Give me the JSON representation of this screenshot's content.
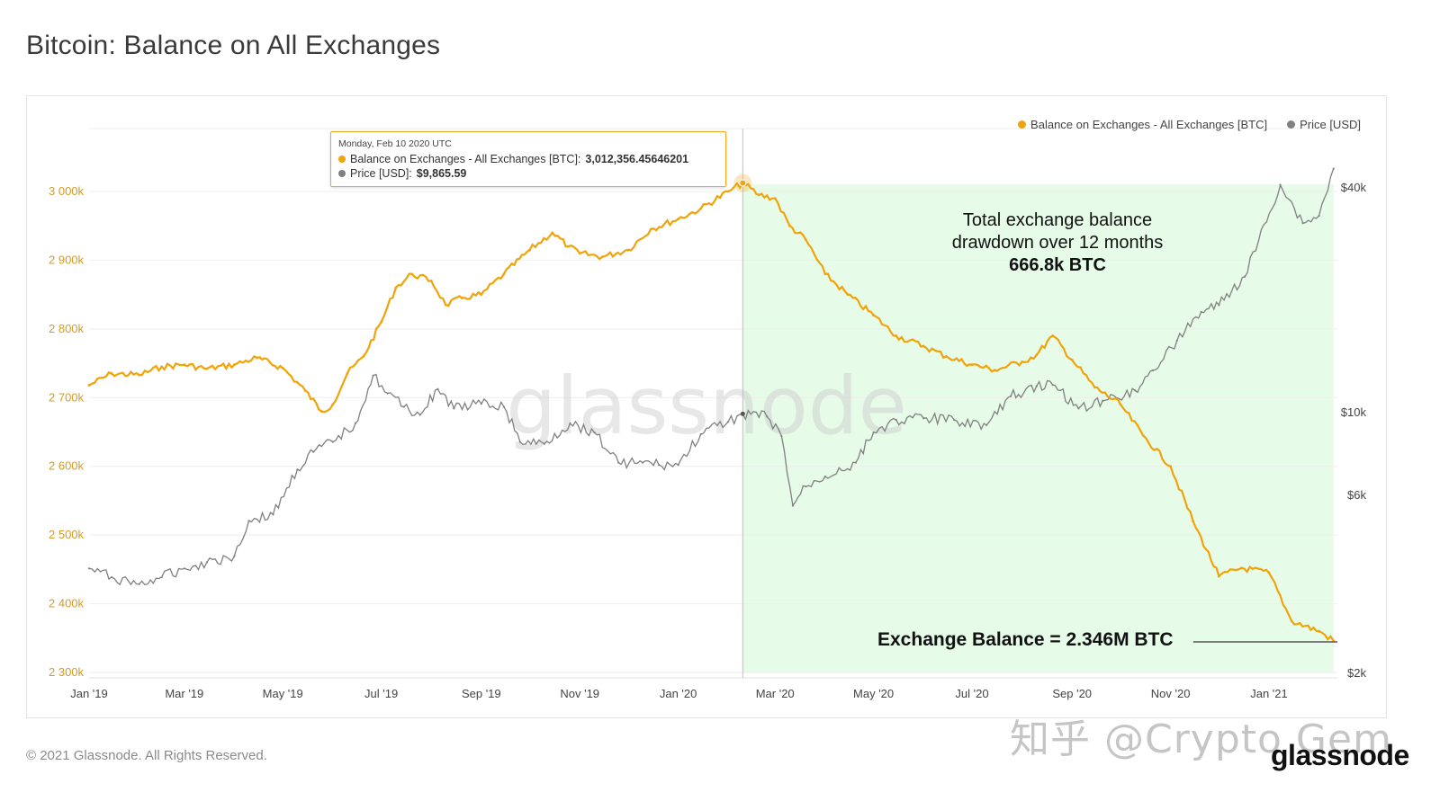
{
  "page": {
    "title": "Bitcoin: Balance on All Exchanges",
    "copyright": "© 2021 Glassnode. All Rights Reserved.",
    "brand": "glassnode",
    "watermark_center": "glassnode",
    "watermark_site": "知乎 @Crypto Gem"
  },
  "legend": {
    "series1": "Balance on Exchanges - All Exchanges [BTC]",
    "series2": "Price [USD]"
  },
  "tooltip": {
    "date": "Monday, Feb 10 2020 UTC",
    "row1_label": "Balance on Exchanges - All Exchanges [BTC]:",
    "row1_value": "3,012,356.45646201",
    "row2_label": "Price [USD]:",
    "row2_value": "$9,865.59"
  },
  "annotations": {
    "drawdown_line1": "Total exchange balance",
    "drawdown_line2": "drawdown over 12 months",
    "drawdown_value": "666.8k BTC",
    "balance_label": "Exchange Balance = 2.346M BTC"
  },
  "colors": {
    "balance": "#f0a30a",
    "price": "#808080",
    "highlight": "#e6fbe8",
    "axis_left": "#d49b28",
    "axis_right": "#444444",
    "x_axis": "#444444",
    "grid": "#eeeeee"
  },
  "chart_data": {
    "type": "line",
    "title": "Bitcoin: Balance on All Exchanges",
    "x_ticks": [
      "Jan '19",
      "Mar '19",
      "May '19",
      "Jul '19",
      "Sep '19",
      "Nov '19",
      "Jan '20",
      "Mar '20",
      "May '20",
      "Jul '20",
      "Sep '20",
      "Nov '20",
      "Jan '21"
    ],
    "y_left": {
      "label": "",
      "ticks": [
        "2 300k",
        "2 400k",
        "2 500k",
        "2 600k",
        "2 700k",
        "2 800k",
        "2 900k",
        "3 000k"
      ],
      "range": [
        2300000,
        3000000
      ]
    },
    "y_right": {
      "label": "",
      "scale": "log",
      "ticks": [
        "$2k",
        "$6k",
        "$10k",
        "$40k"
      ],
      "tick_values": [
        2000,
        6000,
        10000,
        40000
      ]
    },
    "highlight_range": [
      "2020-02-10",
      "2021-02-10"
    ],
    "legend_position": "top-right",
    "grid": true,
    "series": [
      {
        "name": "Balance on Exchanges - All Exchanges [BTC]",
        "axis": "left",
        "x": [
          "2019-01-01",
          "2019-01-15",
          "2019-02-01",
          "2019-02-15",
          "2019-03-01",
          "2019-03-15",
          "2019-04-01",
          "2019-04-15",
          "2019-05-01",
          "2019-05-15",
          "2019-05-25",
          "2019-06-01",
          "2019-06-10",
          "2019-06-20",
          "2019-07-01",
          "2019-07-10",
          "2019-07-20",
          "2019-08-01",
          "2019-08-10",
          "2019-08-20",
          "2019-09-01",
          "2019-09-15",
          "2019-10-01",
          "2019-10-15",
          "2019-10-25",
          "2019-11-01",
          "2019-11-15",
          "2019-12-01",
          "2019-12-15",
          "2020-01-01",
          "2020-01-15",
          "2020-02-01",
          "2020-02-10",
          "2020-02-20",
          "2020-03-01",
          "2020-03-10",
          "2020-03-20",
          "2020-04-01",
          "2020-04-15",
          "2020-05-01",
          "2020-05-15",
          "2020-06-01",
          "2020-06-15",
          "2020-07-01",
          "2020-07-15",
          "2020-08-01",
          "2020-08-10",
          "2020-08-20",
          "2020-09-01",
          "2020-09-15",
          "2020-10-01",
          "2020-10-15",
          "2020-11-01",
          "2020-11-15",
          "2020-12-01",
          "2020-12-15",
          "2021-01-01",
          "2021-01-15",
          "2021-02-01",
          "2021-02-10"
        ],
        "y": [
          2718000,
          2735000,
          2733000,
          2745000,
          2748000,
          2742000,
          2748000,
          2758000,
          2743000,
          2710000,
          2680000,
          2690000,
          2735000,
          2760000,
          2810000,
          2860000,
          2880000,
          2870000,
          2835000,
          2845000,
          2850000,
          2880000,
          2915000,
          2940000,
          2920000,
          2910000,
          2905000,
          2915000,
          2945000,
          2960000,
          2975000,
          3000000,
          3012000,
          2995000,
          2990000,
          2950000,
          2930000,
          2880000,
          2850000,
          2820000,
          2790000,
          2775000,
          2760000,
          2748000,
          2740000,
          2752000,
          2762000,
          2790000,
          2755000,
          2715000,
          2690000,
          2645000,
          2600000,
          2520000,
          2440000,
          2452000,
          2445000,
          2375000,
          2360000,
          2346000
        ]
      },
      {
        "name": "Price [USD]",
        "axis": "right",
        "x": [
          "2019-01-01",
          "2019-01-15",
          "2019-02-01",
          "2019-02-15",
          "2019-03-01",
          "2019-03-15",
          "2019-04-01",
          "2019-04-10",
          "2019-04-25",
          "2019-05-10",
          "2019-05-20",
          "2019-06-01",
          "2019-06-15",
          "2019-06-26",
          "2019-07-05",
          "2019-07-15",
          "2019-07-25",
          "2019-08-05",
          "2019-08-15",
          "2019-09-01",
          "2019-09-15",
          "2019-09-25",
          "2019-10-10",
          "2019-10-26",
          "2019-11-10",
          "2019-11-25",
          "2019-12-10",
          "2019-12-20",
          "2020-01-01",
          "2020-01-15",
          "2020-02-01",
          "2020-02-10",
          "2020-02-25",
          "2020-03-05",
          "2020-03-12",
          "2020-03-20",
          "2020-04-01",
          "2020-04-20",
          "2020-05-01",
          "2020-05-15",
          "2020-06-01",
          "2020-06-20",
          "2020-07-10",
          "2020-07-25",
          "2020-08-10",
          "2020-08-20",
          "2020-09-05",
          "2020-09-20",
          "2020-10-10",
          "2020-10-21",
          "2020-11-05",
          "2020-11-20",
          "2020-12-01",
          "2020-12-17",
          "2021-01-08",
          "2021-01-22",
          "2021-02-01",
          "2021-02-10"
        ],
        "y": [
          3800,
          3600,
          3450,
          3600,
          3800,
          3950,
          4100,
          5100,
          5300,
          7000,
          7800,
          8300,
          9300,
          12500,
          11200,
          10300,
          9800,
          11500,
          10200,
          10500,
          10300,
          8300,
          8200,
          9300,
          8800,
          7300,
          7300,
          7200,
          7200,
          8700,
          9400,
          9866,
          9700,
          8600,
          5600,
          6300,
          6700,
          7300,
          8800,
          9500,
          9600,
          9500,
          9200,
          11000,
          11700,
          11800,
          10200,
          10700,
          11400,
          12900,
          15500,
          18500,
          19300,
          23000,
          40500,
          32000,
          33500,
          44800
        ]
      }
    ]
  }
}
